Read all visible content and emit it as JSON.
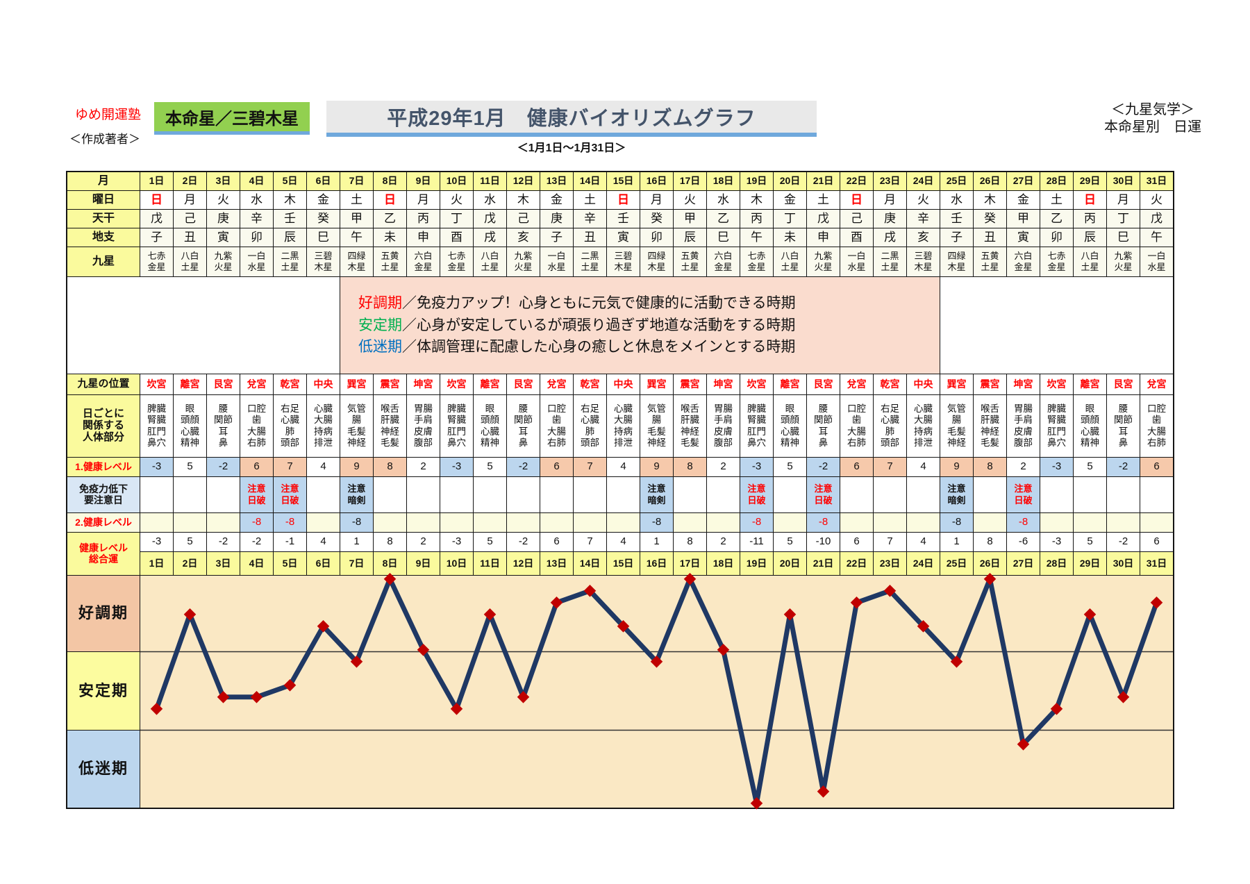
{
  "header": {
    "brand": "ゆめ開運塾",
    "author_label": "＜作成著者＞",
    "honmeisei": "本命星／三碧木星",
    "title": "平成29年1月　健康バイオリズムグラフ",
    "subtitle": "＜1月1日～1月31日＞",
    "right_line1": "＜九星気学＞",
    "right_line2": "本命星別　日運"
  },
  "colors": {
    "accent_underline": "#6FA8DC",
    "honmeisei_bg": "#92D050",
    "title_color": "#44546A",
    "line": "#1F3864",
    "marker": "#C00000",
    "zone_good": "#F3C6A5",
    "zone_stable": "#FCFC9F",
    "zone_low": "#BCD6EE",
    "plot_bg": "#FAE8C4",
    "cell_blue": "#BCD6EE",
    "cell_salmon": "#F6C9AB",
    "header_yellow": "#FAFA9D",
    "legend_pink": "#FADCCE"
  },
  "table": {
    "row_labels": {
      "month": "月",
      "weekday": "曜日",
      "tenkan": "天干",
      "chishi": "地支",
      "kyusei": "九星",
      "kyusei_position": "九星の位置",
      "body_parts": "日ごとに\n関係する\n人体部分",
      "health1": "1.健康レベル",
      "immunity": "免疫力低下\n要注意日",
      "health2": "2.健康レベル",
      "total": "健康レベル\n総合運"
    },
    "days": [
      "1日",
      "2日",
      "3日",
      "4日",
      "5日",
      "6日",
      "7日",
      "8日",
      "9日",
      "10日",
      "11日",
      "12日",
      "13日",
      "14日",
      "15日",
      "16日",
      "17日",
      "18日",
      "19日",
      "20日",
      "21日",
      "22日",
      "23日",
      "24日",
      "25日",
      "26日",
      "27日",
      "28日",
      "29日",
      "30日",
      "31日"
    ],
    "weekdays": [
      "日",
      "月",
      "火",
      "水",
      "木",
      "金",
      "土",
      "日",
      "月",
      "火",
      "水",
      "木",
      "金",
      "土",
      "日",
      "月",
      "火",
      "水",
      "木",
      "金",
      "土",
      "日",
      "月",
      "火",
      "水",
      "木",
      "金",
      "土",
      "日",
      "月",
      "火"
    ],
    "sunday_mark": "日",
    "tenkan": [
      "戊",
      "己",
      "庚",
      "辛",
      "壬",
      "癸",
      "甲",
      "乙",
      "丙",
      "丁",
      "戊",
      "己",
      "庚",
      "辛",
      "壬",
      "癸",
      "甲",
      "乙",
      "丙",
      "丁",
      "戊",
      "己",
      "庚",
      "辛",
      "壬",
      "癸",
      "甲",
      "乙",
      "丙",
      "丁",
      "戊"
    ],
    "chishi": [
      "子",
      "丑",
      "寅",
      "卯",
      "辰",
      "巳",
      "午",
      "未",
      "申",
      "酉",
      "戌",
      "亥",
      "子",
      "丑",
      "寅",
      "卯",
      "辰",
      "巳",
      "午",
      "未",
      "申",
      "酉",
      "戌",
      "亥",
      "子",
      "丑",
      "寅",
      "卯",
      "辰",
      "巳",
      "午"
    ],
    "kyusei": [
      "七赤\n金星",
      "八白\n土星",
      "九紫\n火星",
      "一白\n水星",
      "二黒\n土星",
      "三碧\n木星",
      "四緑\n木星",
      "五黄\n土星",
      "六白\n金星",
      "七赤\n金星",
      "八白\n土星",
      "九紫\n火星",
      "一白\n水星",
      "二黒\n土星",
      "三碧\n木星",
      "四緑\n木星",
      "五黄\n土星",
      "六白\n金星",
      "七赤\n金星",
      "八白\n土星",
      "九紫\n火星",
      "一白\n水星",
      "二黒\n土星",
      "三碧\n木星",
      "四緑\n木星",
      "五黄\n土星",
      "六白\n金星",
      "七赤\n金星",
      "八白\n土星",
      "九紫\n火星",
      "一白\n水星"
    ],
    "positions": [
      "坎宮",
      "離宮",
      "艮宮",
      "兌宮",
      "乾宮",
      "中央",
      "巽宮",
      "震宮",
      "坤宮",
      "坎宮",
      "離宮",
      "艮宮",
      "兌宮",
      "乾宮",
      "中央",
      "巽宮",
      "震宮",
      "坤宮",
      "坎宮",
      "離宮",
      "艮宮",
      "兌宮",
      "乾宮",
      "中央",
      "巽宮",
      "震宮",
      "坤宮",
      "坎宮",
      "離宮",
      "艮宮",
      "兌宮"
    ],
    "body_parts": [
      "脾臓\n腎臓\n肛門\n鼻穴",
      "眼\n頭顔\n心臓\n精神",
      "腰\n関節\n耳\n鼻",
      "口腔\n歯\n大腸\n右肺",
      "右足\n心臓\n肺\n頭部",
      "心臓\n大腸\n持病\n排泄",
      "気管\n腸\n毛髪\n神経",
      "喉舌\n肝臓\n神経\n毛髪",
      "胃腸\n手肩\n皮膚\n腹部",
      "脾臓\n腎臓\n肛門\n鼻穴",
      "眼\n頭顔\n心臓\n精神",
      "腰\n関節\n耳\n鼻",
      "口腔\n歯\n大腸\n右肺",
      "右足\n心臓\n肺\n頭部",
      "心臓\n大腸\n持病\n排泄",
      "気管\n腸\n毛髪\n神経",
      "喉舌\n肝臓\n神経\n毛髪",
      "胃腸\n手肩\n皮膚\n腹部",
      "脾臓\n腎臓\n肛門\n鼻穴",
      "眼\n頭顔\n心臓\n精神",
      "腰\n関節\n耳\n鼻",
      "口腔\n歯\n大腸\n右肺",
      "右足\n心臓\n肺\n頭部",
      "心臓\n大腸\n持病\n排泄",
      "気管\n腸\n毛髪\n神経",
      "喉舌\n肝臓\n神経\n毛髪",
      "胃腸\n手肩\n皮膚\n腹部",
      "脾臓\n腎臓\n肛門\n鼻穴",
      "眼\n頭顔\n心臓\n精神",
      "腰\n関節\n耳\n鼻",
      "口腔\n歯\n大腸\n右肺"
    ],
    "health1": [
      -3,
      5,
      -2,
      6,
      7,
      4,
      9,
      8,
      2,
      -3,
      5,
      -2,
      6,
      7,
      4,
      9,
      8,
      2,
      -3,
      5,
      -2,
      6,
      7,
      4,
      9,
      8,
      2,
      -3,
      5,
      -2,
      6
    ],
    "immunity": [
      null,
      null,
      null,
      {
        "text": "注意\n日破",
        "style": "red"
      },
      {
        "text": "注意\n日破",
        "style": "red"
      },
      null,
      {
        "text": "注意\n暗剣",
        "style": "black"
      },
      null,
      null,
      null,
      null,
      null,
      null,
      null,
      null,
      {
        "text": "注意\n暗剣",
        "style": "black"
      },
      null,
      null,
      {
        "text": "注意\n日破",
        "style": "red"
      },
      null,
      {
        "text": "注意\n日破",
        "style": "red"
      },
      null,
      null,
      null,
      {
        "text": "注意\n暗剣",
        "style": "black"
      },
      null,
      {
        "text": "注意\n日破",
        "style": "red"
      },
      null,
      null,
      null,
      null
    ],
    "health2": [
      null,
      null,
      null,
      {
        "value": "-8",
        "style": "red"
      },
      {
        "value": "-8",
        "style": "red"
      },
      null,
      {
        "value": "-8",
        "style": "black"
      },
      null,
      null,
      null,
      null,
      null,
      null,
      null,
      null,
      {
        "value": "-8",
        "style": "black"
      },
      null,
      null,
      {
        "value": "-8",
        "style": "red"
      },
      null,
      {
        "value": "-8",
        "style": "red"
      },
      null,
      null,
      null,
      {
        "value": "-8",
        "style": "black"
      },
      null,
      {
        "value": "-8",
        "style": "red"
      },
      null,
      null,
      null,
      null
    ],
    "total": [
      -3,
      5,
      -2,
      -2,
      -1,
      4,
      1,
      8,
      2,
      -3,
      5,
      -2,
      6,
      7,
      4,
      1,
      8,
      2,
      -11,
      5,
      -10,
      6,
      7,
      4,
      1,
      8,
      -6,
      -3,
      5,
      -2,
      6
    ]
  },
  "legend": {
    "lines": [
      {
        "term": "好調期",
        "term_color": "#FF0000",
        "desc": "／免疫力アップ！心身ともに元気で健康的に活動できる時期"
      },
      {
        "term": "安定期",
        "term_color": "#00B050",
        "desc": "／心身が安定しているが頑張り過ぎず地道な活動をする時期"
      },
      {
        "term": "低迷期",
        "term_color": "#0070C0",
        "desc": "／体調管理に配慮した心身の癒しと休息をメインとする時期"
      }
    ]
  },
  "chart": {
    "zone_labels": [
      "好調期",
      "安定期",
      "低迷期"
    ]
  },
  "chart_data": {
    "type": "line",
    "title": "平成29年1月　健康バイオリズムグラフ",
    "categories": [
      "1日",
      "2日",
      "3日",
      "4日",
      "5日",
      "6日",
      "7日",
      "8日",
      "9日",
      "10日",
      "11日",
      "12日",
      "13日",
      "14日",
      "15日",
      "16日",
      "17日",
      "18日",
      "19日",
      "20日",
      "21日",
      "22日",
      "23日",
      "24日",
      "25日",
      "26日",
      "27日",
      "28日",
      "29日",
      "30日",
      "31日"
    ],
    "series": [
      {
        "name": "健康レベル総合運",
        "values": [
          -3,
          5,
          -2,
          -2,
          -1,
          4,
          1,
          8,
          2,
          -3,
          5,
          -2,
          6,
          7,
          4,
          1,
          8,
          2,
          -11,
          5,
          -10,
          6,
          7,
          4,
          1,
          8,
          -6,
          -3,
          5,
          -2,
          6
        ]
      }
    ],
    "ylim": [
      -12,
      9
    ],
    "zones": [
      {
        "label": "好調期",
        "approx_value_range": [
          2,
          9
        ]
      },
      {
        "label": "安定期",
        "approx_value_range": [
          -5,
          2
        ]
      },
      {
        "label": "低迷期",
        "approx_value_range": [
          -12,
          -5
        ]
      }
    ],
    "grid": "zone-boundaries-only",
    "legend_position": "none",
    "line_color": "#1F3864",
    "marker": "diamond",
    "marker_color": "#C00000"
  }
}
